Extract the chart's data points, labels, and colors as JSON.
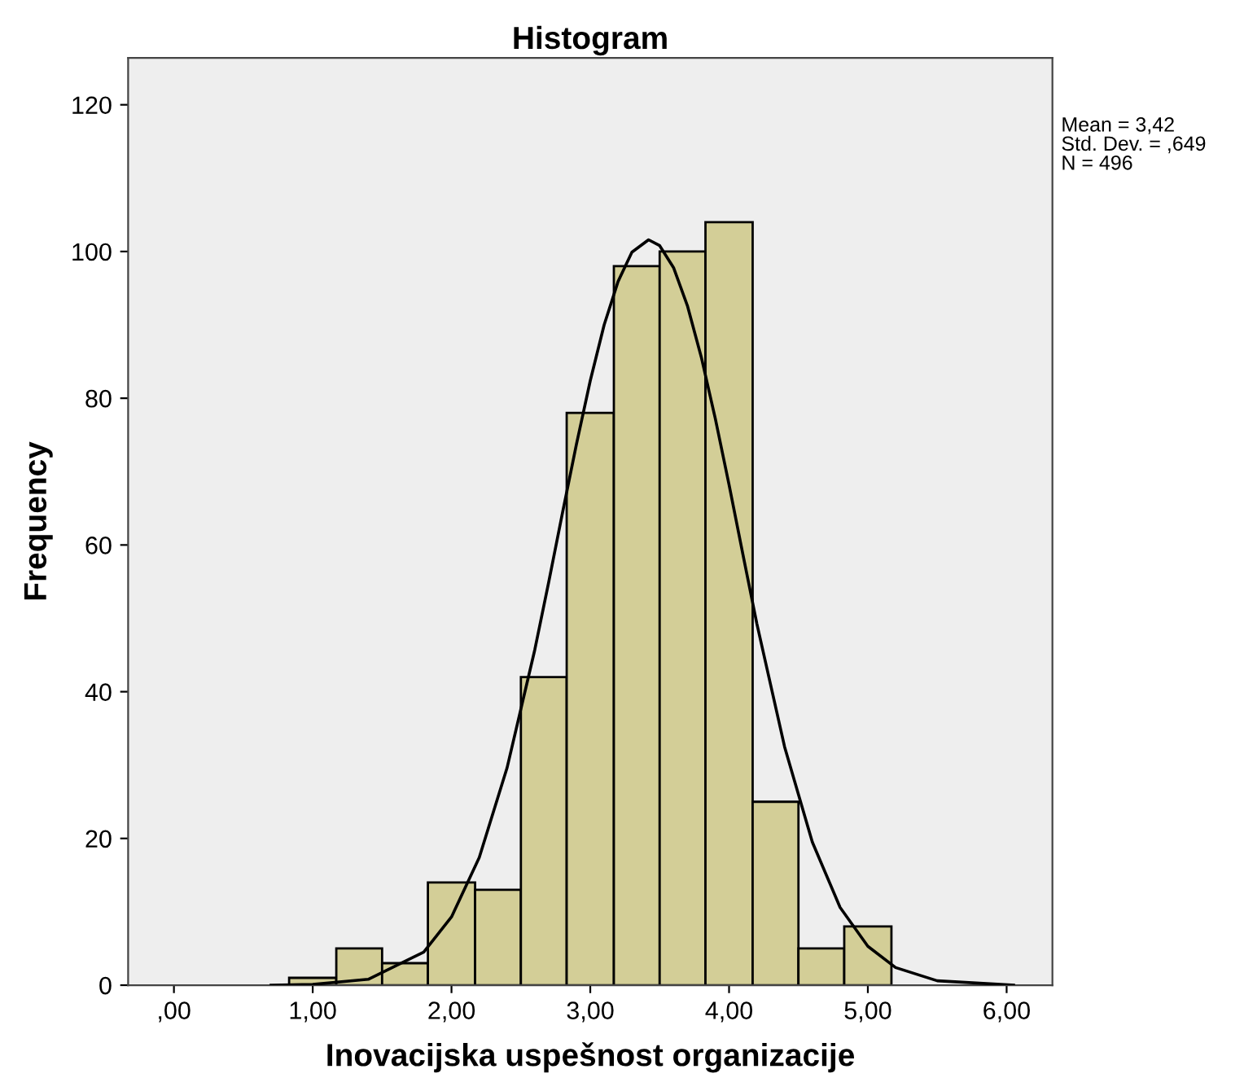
{
  "chart_data": {
    "type": "histogram",
    "title": "Histogram",
    "xlabel": "Inovacijska uspešnost organizacije",
    "ylabel": "Frequency",
    "series": [
      {
        "color": "#d3ce97",
        "bins": [
          0.83,
          1.17,
          1.5,
          1.83,
          2.17,
          2.5,
          2.83,
          3.17,
          3.5,
          3.83,
          4.17,
          4.5,
          4.83,
          5.17
        ],
        "values": [
          1,
          5,
          3,
          14,
          13,
          42,
          78,
          98,
          100,
          104,
          25,
          5,
          8
        ]
      },
      {
        "type": "line",
        "color": "#000000",
        "x": [
          0.7,
          1.0,
          1.4,
          1.8,
          2.0,
          2.2,
          2.4,
          2.6,
          2.7,
          2.8,
          2.9,
          3.0,
          3.1,
          3.2,
          3.3,
          3.42,
          3.5,
          3.6,
          3.7,
          3.8,
          3.9,
          4.0,
          4.1,
          4.2,
          4.4,
          4.6,
          4.8,
          5.0,
          5.2,
          5.5,
          6.05
        ],
        "values": [
          0,
          0.1,
          0.8,
          4.5,
          9.3,
          17.4,
          29.6,
          45.7,
          54.9,
          64.4,
          73.7,
          82.4,
          90.0,
          95.9,
          99.9,
          101.6,
          100.8,
          97.8,
          92.6,
          85.6,
          77.3,
          68.2,
          58.7,
          49.3,
          32.5,
          19.5,
          10.6,
          5.3,
          2.4,
          0.6,
          0
        ]
      }
    ],
    "xlim": [
      -0.33,
      6.33
    ],
    "ylim": [
      0,
      126.4
    ],
    "xticks": [
      {
        "value": 0,
        "label": ",00"
      },
      {
        "value": 1,
        "label": "1,00"
      },
      {
        "value": 2,
        "label": "2,00"
      },
      {
        "value": 3,
        "label": "3,00"
      },
      {
        "value": 4,
        "label": "4,00"
      },
      {
        "value": 5,
        "label": "5,00"
      },
      {
        "value": 6,
        "label": "6,00"
      }
    ],
    "yticks": [
      0,
      20,
      40,
      60,
      80,
      100,
      120
    ],
    "annotations": [
      "Mean = 3,42",
      "Std. Dev. = ,649",
      "N = 496"
    ]
  }
}
